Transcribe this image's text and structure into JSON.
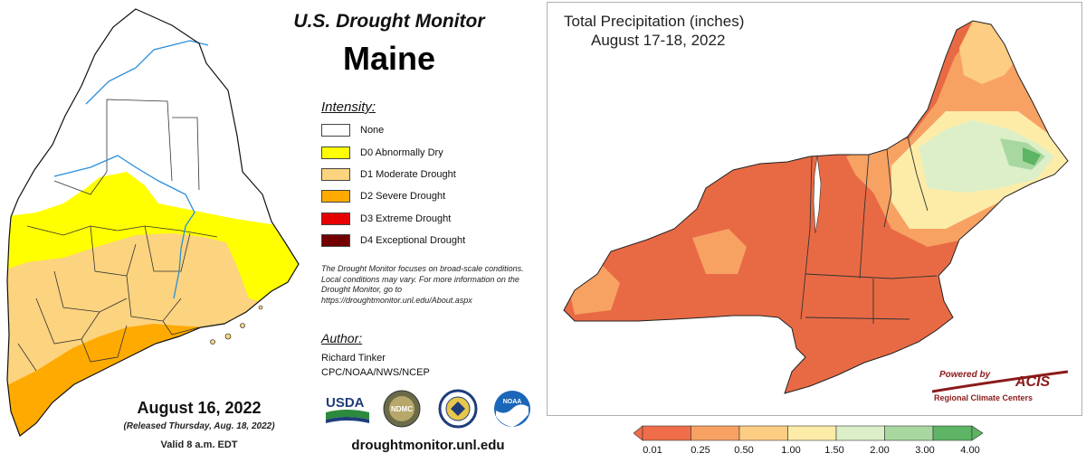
{
  "left_panel": {
    "header": {
      "title": "U.S. Drought Monitor",
      "state": "Maine"
    },
    "legend": {
      "heading": "Intensity:",
      "items": [
        {
          "label": "None",
          "color": "#ffffff"
        },
        {
          "label": "D0 Abnormally Dry",
          "color": "#ffff00"
        },
        {
          "label": "D1 Moderate Drought",
          "color": "#fcd37f"
        },
        {
          "label": "D2 Severe Drought",
          "color": "#ffaa00"
        },
        {
          "label": "D3 Extreme Drought",
          "color": "#e60000"
        },
        {
          "label": "D4 Exceptional Drought",
          "color": "#730000"
        }
      ]
    },
    "note": "The Drought Monitor focuses on broad-scale conditions. Local conditions may vary. For more information on the Drought Monitor, go to https://droughtmonitor.unl.edu/About.aspx",
    "author": {
      "heading": "Author:",
      "name": "Richard Tinker",
      "org": "CPC/NOAA/NWS/NCEP"
    },
    "date": {
      "main": "August 16, 2022",
      "released": "(Released Thursday, Aug. 18, 2022)",
      "valid": "Valid 8 a.m. EDT"
    },
    "logos": {
      "usda": "USDA",
      "ndmc": "NDMC",
      "noaa": "NOAA"
    },
    "website": "droughtmonitor.unl.edu"
  },
  "right_panel": {
    "title_line1": "Total Precipitation (inches)",
    "title_line2": "August 17-18, 2022",
    "branding": {
      "powered_by": "Powered by",
      "acis": "ACIS",
      "rcc": "Regional Climate Centers"
    },
    "colorbar": {
      "labels": [
        "0.01",
        "0.25",
        "0.50",
        "1.00",
        "1.50",
        "2.00",
        "3.00",
        "4.00"
      ],
      "colors": [
        "#f06d4a",
        "#f7a263",
        "#fccd82",
        "#fdeca8",
        "#dcefc8",
        "#a8d8a0",
        "#5cb464"
      ]
    }
  }
}
